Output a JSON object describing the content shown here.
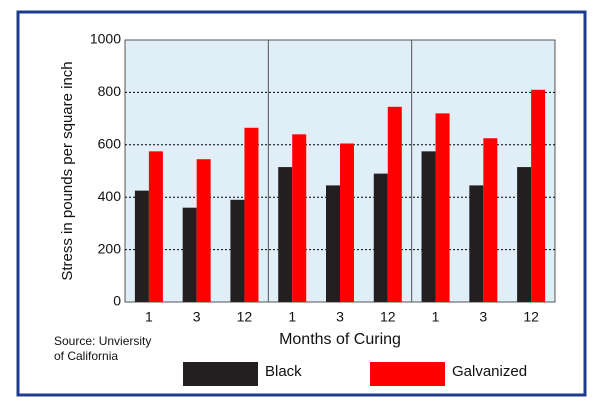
{
  "chart_data": {
    "type": "bar",
    "x_label": "Months of Curing",
    "y_label": "Stress in pounds per square inch",
    "source": [
      "Source: Unviersity",
      "of California"
    ],
    "categories": [
      "1",
      "3",
      "12",
      "1",
      "3",
      "12",
      "1",
      "3",
      "12"
    ],
    "series": [
      {
        "name": "Black",
        "color": "#231f20",
        "values": [
          425,
          360,
          390,
          515,
          445,
          490,
          575,
          445,
          515
        ]
      },
      {
        "name": "Galvanized",
        "color": "#ff0000",
        "values": [
          575,
          545,
          665,
          640,
          605,
          745,
          720,
          625,
          810
        ]
      }
    ],
    "ylim": [
      0,
      1000
    ],
    "yticks": [
      0,
      200,
      400,
      600,
      800,
      1000
    ],
    "grid": true
  }
}
